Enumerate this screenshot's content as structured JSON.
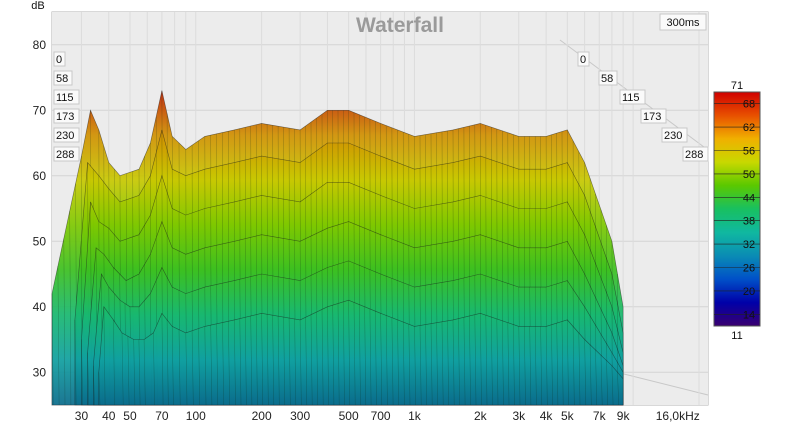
{
  "chart_data": {
    "type": "area",
    "title": "Waterfall",
    "ylabel": "dB",
    "xunit": "Hz",
    "x_scale": "log",
    "xlim": [
      22,
      22000
    ],
    "ylim": [
      25,
      85
    ],
    "x_ticks": [
      {
        "v": 30,
        "label": "30"
      },
      {
        "v": 40,
        "label": "40"
      },
      {
        "v": 50,
        "label": "50"
      },
      {
        "v": 70,
        "label": "70"
      },
      {
        "v": 100,
        "label": "100"
      },
      {
        "v": 200,
        "label": "200"
      },
      {
        "v": 300,
        "label": "300"
      },
      {
        "v": 500,
        "label": "500"
      },
      {
        "v": 700,
        "label": "700"
      },
      {
        "v": 1000,
        "label": "1k"
      },
      {
        "v": 2000,
        "label": "2k"
      },
      {
        "v": 3000,
        "label": "3k"
      },
      {
        "v": 4000,
        "label": "4k"
      },
      {
        "v": 5000,
        "label": "5k"
      },
      {
        "v": 7000,
        "label": "7k"
      },
      {
        "v": 9000,
        "label": "9k"
      },
      {
        "v": 16000,
        "label": "16,0kHz"
      }
    ],
    "y_ticks": [
      30,
      40,
      50,
      60,
      70,
      80
    ],
    "time_axis_max_label": "300ms",
    "time_labels_left": [
      "0",
      "58",
      "115",
      "173",
      "230",
      "288"
    ],
    "time_labels_right": [
      "0",
      "58",
      "115",
      "173",
      "230",
      "288"
    ],
    "colorbar": {
      "min": 11,
      "max": 71,
      "ticks": [
        68,
        62,
        56,
        50,
        44,
        38,
        32,
        26,
        20,
        14
      ],
      "colors": [
        "#3a0070",
        "#0000a8",
        "#0050c8",
        "#0a8cb4",
        "#10b8a0",
        "#18c060",
        "#5ac800",
        "#c8d800",
        "#f0b000",
        "#e85000",
        "#d00000"
      ]
    },
    "series": [
      {
        "values": [
          [
            22,
            42
          ],
          [
            30,
            63
          ],
          [
            33,
            70
          ],
          [
            36,
            67
          ],
          [
            40,
            62
          ],
          [
            45,
            60
          ],
          [
            55,
            61
          ],
          [
            62,
            65
          ],
          [
            70,
            73
          ],
          [
            78,
            66
          ],
          [
            90,
            64
          ],
          [
            110,
            66
          ],
          [
            150,
            67
          ],
          [
            200,
            68
          ],
          [
            300,
            67
          ],
          [
            400,
            70
          ],
          [
            500,
            70
          ],
          [
            700,
            68
          ],
          [
            1000,
            66
          ],
          [
            1500,
            67
          ],
          [
            2000,
            68
          ],
          [
            3000,
            66
          ],
          [
            4000,
            66
          ],
          [
            5000,
            67
          ],
          [
            6000,
            62
          ],
          [
            8000,
            50
          ],
          [
            9000,
            40
          ]
        ]
      },
      {
        "values": [
          [
            28,
            38
          ],
          [
            32,
            62
          ],
          [
            36,
            60
          ],
          [
            40,
            58
          ],
          [
            45,
            56
          ],
          [
            55,
            57
          ],
          [
            62,
            60
          ],
          [
            70,
            67
          ],
          [
            78,
            61
          ],
          [
            90,
            60
          ],
          [
            110,
            61
          ],
          [
            150,
            62
          ],
          [
            200,
            63
          ],
          [
            300,
            62
          ],
          [
            400,
            65
          ],
          [
            500,
            65
          ],
          [
            700,
            63
          ],
          [
            1000,
            61
          ],
          [
            1500,
            62
          ],
          [
            2000,
            63
          ],
          [
            3000,
            61
          ],
          [
            4000,
            61
          ],
          [
            5000,
            62
          ],
          [
            6000,
            57
          ],
          [
            8000,
            45
          ],
          [
            9000,
            36
          ]
        ]
      },
      {
        "values": [
          [
            30,
            35
          ],
          [
            33,
            56
          ],
          [
            36,
            53
          ],
          [
            40,
            52
          ],
          [
            45,
            50
          ],
          [
            55,
            51
          ],
          [
            62,
            54
          ],
          [
            70,
            60
          ],
          [
            78,
            55
          ],
          [
            90,
            54
          ],
          [
            110,
            55
          ],
          [
            150,
            56
          ],
          [
            200,
            57
          ],
          [
            300,
            56
          ],
          [
            400,
            59
          ],
          [
            500,
            59
          ],
          [
            700,
            57
          ],
          [
            1000,
            55
          ],
          [
            1500,
            56
          ],
          [
            2000,
            57
          ],
          [
            3000,
            55
          ],
          [
            4000,
            55
          ],
          [
            5000,
            56
          ],
          [
            6000,
            51
          ],
          [
            8000,
            40
          ],
          [
            9000,
            33
          ]
        ]
      },
      {
        "values": [
          [
            32,
            33
          ],
          [
            35,
            49
          ],
          [
            38,
            48
          ],
          [
            42,
            46
          ],
          [
            48,
            44
          ],
          [
            55,
            45
          ],
          [
            62,
            48
          ],
          [
            70,
            53
          ],
          [
            78,
            49
          ],
          [
            90,
            48
          ],
          [
            110,
            49
          ],
          [
            150,
            50
          ],
          [
            200,
            51
          ],
          [
            300,
            50
          ],
          [
            400,
            52
          ],
          [
            500,
            53
          ],
          [
            700,
            51
          ],
          [
            1000,
            49
          ],
          [
            1500,
            50
          ],
          [
            2000,
            51
          ],
          [
            3000,
            49
          ],
          [
            4000,
            49
          ],
          [
            5000,
            50
          ],
          [
            6000,
            45
          ],
          [
            8000,
            36
          ],
          [
            9000,
            31
          ]
        ]
      },
      {
        "values": [
          [
            34,
            31
          ],
          [
            37,
            45
          ],
          [
            40,
            43
          ],
          [
            45,
            41
          ],
          [
            50,
            40
          ],
          [
            55,
            40
          ],
          [
            62,
            42
          ],
          [
            70,
            46
          ],
          [
            78,
            43
          ],
          [
            90,
            42
          ],
          [
            110,
            43
          ],
          [
            150,
            44
          ],
          [
            200,
            45
          ],
          [
            300,
            44
          ],
          [
            400,
            46
          ],
          [
            500,
            47
          ],
          [
            700,
            45
          ],
          [
            1000,
            43
          ],
          [
            1500,
            44
          ],
          [
            2000,
            45
          ],
          [
            3000,
            43
          ],
          [
            4000,
            43
          ],
          [
            5000,
            44
          ],
          [
            6000,
            40
          ],
          [
            8000,
            33
          ],
          [
            9000,
            30
          ]
        ]
      },
      {
        "values": [
          [
            36,
            30
          ],
          [
            38,
            40
          ],
          [
            42,
            38
          ],
          [
            46,
            36
          ],
          [
            52,
            35
          ],
          [
            58,
            35
          ],
          [
            64,
            36
          ],
          [
            70,
            39
          ],
          [
            78,
            37
          ],
          [
            90,
            36
          ],
          [
            110,
            37
          ],
          [
            150,
            38
          ],
          [
            200,
            39
          ],
          [
            300,
            38
          ],
          [
            400,
            40
          ],
          [
            500,
            41
          ],
          [
            700,
            39
          ],
          [
            1000,
            37
          ],
          [
            1500,
            38
          ],
          [
            2000,
            39
          ],
          [
            3000,
            37
          ],
          [
            4000,
            37
          ],
          [
            5000,
            38
          ],
          [
            6000,
            35
          ],
          [
            8000,
            31
          ],
          [
            9000,
            29
          ]
        ]
      }
    ]
  }
}
